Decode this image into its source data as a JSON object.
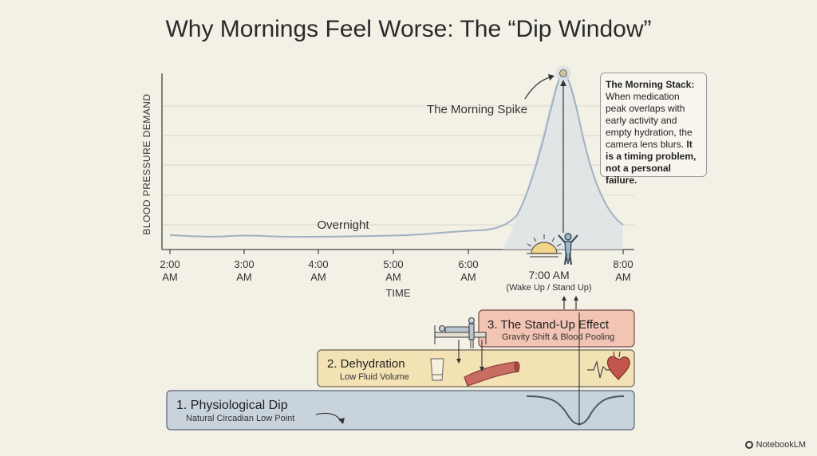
{
  "title": "Why Mornings Feel Worse: The “Dip Window”",
  "chart": {
    "ylabel": "BLOOD PRESSURE DEMAND",
    "xlabel": "TIME",
    "ticks": [
      {
        "top": "2:00",
        "bottom": "AM"
      },
      {
        "top": "3:00",
        "bottom": "AM"
      },
      {
        "top": "4:00",
        "bottom": "AM"
      },
      {
        "top": "5:00",
        "bottom": "AM"
      },
      {
        "top": "6:00",
        "bottom": "AM"
      },
      {
        "top": "7:00 AM",
        "bottom": "(Wake Up / Stand Up)"
      },
      {
        "top": "8:00",
        "bottom": "AM"
      }
    ],
    "overnight_label": "Overnight",
    "spike_label": "The Morning Spike"
  },
  "callout": {
    "heading": "The Morning Stack:",
    "body": "When medication peak overlaps with early activity and empty hydration, the camera lens blurs.",
    "emphasis": "It is a timing problem, not a personal failure."
  },
  "layers": {
    "standup": {
      "title": "3. The Stand-Up Effect",
      "subtitle": "Gravity Shift & Blood Pooling",
      "color": "#f2c4b4"
    },
    "dehydration": {
      "title": "2. Dehydration",
      "subtitle": "Low Fluid Volume",
      "color": "#f3e2b4"
    },
    "dip": {
      "title": "1. Physiological Dip",
      "subtitle": "Natural Circadian Low Point",
      "color": "#c9d3dc"
    }
  },
  "icons": [
    "sunrise-icon",
    "person-standing-icon",
    "person-lying-icon",
    "water-glass-icon",
    "blood-vessel-icon",
    "heartbeat-icon",
    "heart-icon"
  ],
  "brand": "NotebookLM"
}
